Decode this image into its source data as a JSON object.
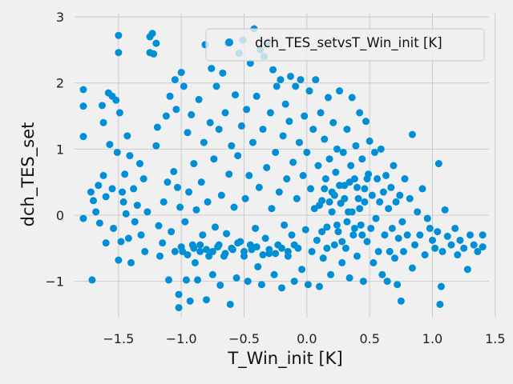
{
  "chart_data": {
    "type": "scatter",
    "xlabel": "T_Win_init [K]",
    "ylabel": "dch_TES_set",
    "xlim": [
      -1.85,
      1.45
    ],
    "ylim": [
      -1.55,
      3.05
    ],
    "xticks": [
      -1.5,
      -1.0,
      -0.5,
      0.0,
      0.5,
      1.0,
      1.5
    ],
    "xtick_labels": [
      "−1.5",
      "−1.0",
      "−0.5",
      "0.0",
      "0.5",
      "1.0",
      "1.5"
    ],
    "yticks": [
      -1,
      0,
      1,
      2,
      3
    ],
    "ytick_labels": [
      "−1",
      "0",
      "1",
      "2",
      "3"
    ],
    "grid": true,
    "legend_position": "top-right",
    "colors": {
      "series": "#008fd5",
      "background": "#f0f0f0",
      "grid": "#cbcbcb"
    },
    "series": [
      {
        "name": "dch_TES_setvsT_Win_init [K]",
        "points": [
          [
            -1.78,
            1.9
          ],
          [
            -1.78,
            1.65
          ],
          [
            -1.78,
            1.19
          ],
          [
            -1.78,
            -0.05
          ],
          [
            -1.71,
            -0.98
          ],
          [
            -1.72,
            0.35
          ],
          [
            -1.7,
            0.22
          ],
          [
            -1.68,
            0.05
          ],
          [
            -1.66,
            0.45
          ],
          [
            -1.65,
            -0.12
          ],
          [
            -1.63,
            1.66
          ],
          [
            -1.62,
            1.4
          ],
          [
            -1.62,
            0.6
          ],
          [
            -1.6,
            0.28
          ],
          [
            -1.6,
            -0.42
          ],
          [
            -1.58,
            1.85
          ],
          [
            -1.57,
            1.07
          ],
          [
            -1.55,
            1.8
          ],
          [
            -1.55,
            0.4
          ],
          [
            -1.54,
            -0.2
          ],
          [
            -1.52,
            1.74
          ],
          [
            -1.51,
            0.95
          ],
          [
            -1.5,
            2.72
          ],
          [
            -1.5,
            2.46
          ],
          [
            -1.5,
            -0.68
          ],
          [
            -1.49,
            1.55
          ],
          [
            -1.48,
            -0.4
          ],
          [
            -1.47,
            0.35
          ],
          [
            -1.46,
            0.2
          ],
          [
            -1.45,
            0.62
          ],
          [
            -1.44,
            0.02
          ],
          [
            -1.43,
            1.2
          ],
          [
            -1.42,
            -0.35
          ],
          [
            -1.41,
            0.9
          ],
          [
            -1.4,
            -0.72
          ],
          [
            -1.38,
            0.4
          ],
          [
            -1.37,
            -0.1
          ],
          [
            -1.35,
            0.15
          ],
          [
            -1.33,
            0.78
          ],
          [
            -1.32,
            -0.3
          ],
          [
            -1.3,
            0.55
          ],
          [
            -1.29,
            -0.55
          ],
          [
            -1.27,
            0.05
          ],
          [
            -1.25,
            2.7
          ],
          [
            -1.25,
            2.46
          ],
          [
            -1.23,
            2.75
          ],
          [
            -1.22,
            2.44
          ],
          [
            -1.2,
            2.6
          ],
          [
            -1.2,
            1.05
          ],
          [
            -1.19,
            1.33
          ],
          [
            -1.18,
            -0.16
          ],
          [
            -1.17,
            -0.62
          ],
          [
            -1.15,
            -0.42
          ],
          [
            -1.14,
            0.2
          ],
          [
            -1.12,
            1.5
          ],
          [
            -1.11,
            0.5
          ],
          [
            -1.1,
            -0.98
          ],
          [
            -1.09,
            1.8
          ],
          [
            -1.08,
            -0.25
          ],
          [
            -1.06,
            0.66
          ],
          [
            -1.05,
            2.05
          ],
          [
            -1.04,
            1.6
          ],
          [
            -1.03,
            0.42
          ],
          [
            -1.02,
            -1.4
          ],
          [
            -1.02,
            -1.2
          ],
          [
            -1.01,
            0.12
          ],
          [
            -1.0,
            2.16
          ],
          [
            -0.99,
            -0.55
          ],
          [
            -0.98,
            1.95
          ],
          [
            -0.97,
            -0.1
          ],
          [
            -0.96,
            -0.98
          ],
          [
            -0.95,
            1.25
          ],
          [
            -0.94,
            0.35
          ],
          [
            -0.93,
            -1.3
          ],
          [
            -0.92,
            1.52
          ],
          [
            -0.91,
            -0.45
          ],
          [
            -0.9,
            0.78
          ],
          [
            -0.89,
            -0.72
          ],
          [
            -0.88,
            0.08
          ],
          [
            -0.87,
            -0.98
          ],
          [
            -0.86,
            1.75
          ],
          [
            -0.85,
            -0.55
          ],
          [
            -0.84,
            0.5
          ],
          [
            -0.83,
            -0.3
          ],
          [
            -0.82,
            1.1
          ],
          [
            -0.81,
            2.58
          ],
          [
            -0.8,
            -1.28
          ],
          [
            -0.79,
            0.2
          ],
          [
            -0.78,
            -0.62
          ],
          [
            -0.77,
            1.4
          ],
          [
            -0.76,
            2.22
          ],
          [
            -0.75,
            -0.9
          ],
          [
            -0.74,
            0.85
          ],
          [
            -0.73,
            -0.18
          ],
          [
            -0.72,
            1.95
          ],
          [
            -0.71,
            -0.48
          ],
          [
            -0.7,
            1.3
          ],
          [
            -0.69,
            -1.06
          ],
          [
            -0.68,
            0.3
          ],
          [
            -0.67,
            2.15
          ],
          [
            -0.66,
            -0.62
          ],
          [
            -0.65,
            1.55
          ],
          [
            -0.64,
            -0.28
          ],
          [
            -0.63,
            2.6
          ],
          [
            -0.62,
            0.62
          ],
          [
            -0.61,
            -1.35
          ],
          [
            -0.6,
            1.05
          ],
          [
            -0.59,
            -0.52
          ],
          [
            -0.58,
            0.12
          ],
          [
            -0.57,
            1.82
          ],
          [
            -0.56,
            -0.95
          ],
          [
            -0.55,
            0.9
          ],
          [
            -0.54,
            2.45
          ],
          [
            -0.53,
            -0.4
          ],
          [
            -0.52,
            1.35
          ],
          [
            -0.51,
            2.65
          ],
          [
            -0.5,
            -0.62
          ],
          [
            -0.49,
            0.25
          ],
          [
            -0.48,
            1.6
          ],
          [
            -0.47,
            -1.0
          ],
          [
            -0.46,
            0.6
          ],
          [
            -0.45,
            2.3
          ],
          [
            -0.44,
            -0.52
          ],
          [
            -0.43,
            1.1
          ],
          [
            -0.42,
            2.82
          ],
          [
            -0.41,
            -0.2
          ],
          [
            -0.4,
            1.8
          ],
          [
            -0.39,
            -0.78
          ],
          [
            -0.38,
            0.42
          ],
          [
            -0.37,
            2.5
          ],
          [
            -0.36,
            -1.05
          ],
          [
            -0.35,
            1.3
          ],
          [
            -0.34,
            2.4
          ],
          [
            -0.33,
            -0.35
          ],
          [
            -0.32,
            0.72
          ],
          [
            -0.31,
            2.62
          ],
          [
            -0.3,
            -0.58
          ],
          [
            -0.29,
            1.55
          ],
          [
            -0.28,
            0.1
          ],
          [
            -0.27,
            2.2
          ],
          [
            -0.26,
            -0.9
          ],
          [
            -0.25,
            0.95
          ],
          [
            -0.24,
            1.95
          ],
          [
            -0.23,
            -0.45
          ],
          [
            -0.22,
            0.35
          ],
          [
            -0.21,
            2.05
          ],
          [
            -0.2,
            -1.1
          ],
          [
            -0.19,
            1.2
          ],
          [
            -0.18,
            -0.15
          ],
          [
            -0.17,
            1.68
          ],
          [
            -0.16,
            0.55
          ],
          [
            -0.15,
            -0.62
          ],
          [
            -0.14,
            1.42
          ],
          [
            -0.13,
            2.1
          ],
          [
            -0.12,
            -0.3
          ],
          [
            -0.11,
            0.8
          ],
          [
            -0.1,
            -1.0
          ],
          [
            -0.09,
            1.95
          ],
          [
            -0.08,
            0.25
          ],
          [
            -0.07,
            -0.5
          ],
          [
            -0.06,
            1.1
          ],
          [
            -0.05,
            2.05
          ],
          [
            -0.04,
            -0.82
          ],
          [
            -0.03,
            0.6
          ],
          [
            -0.02,
            1.5
          ],
          [
            -0.01,
            -0.22
          ],
          [
            0.0,
            0.95
          ],
          [
            0.01,
            -1.05
          ],
          [
            0.02,
            1.88
          ],
          [
            0.03,
            0.4
          ],
          [
            0.04,
            -0.55
          ],
          [
            0.05,
            1.3
          ],
          [
            0.06,
            0.1
          ],
          [
            0.07,
            2.05
          ],
          [
            0.08,
            -0.38
          ],
          [
            0.09,
            0.75
          ],
          [
            0.1,
            -1.08
          ],
          [
            0.11,
            1.55
          ],
          [
            0.12,
            0.22
          ],
          [
            0.13,
            -0.65
          ],
          [
            0.14,
            1.15
          ],
          [
            0.15,
            0.55
          ],
          [
            0.16,
            -0.18
          ],
          [
            0.17,
            1.78
          ],
          [
            0.18,
            0.85
          ],
          [
            0.19,
            -0.9
          ],
          [
            0.2,
            0.35
          ],
          [
            0.21,
            1.4
          ],
          [
            0.22,
            -0.45
          ],
          [
            0.23,
            0.65
          ],
          [
            0.24,
            1.0
          ],
          [
            0.25,
            -0.25
          ],
          [
            0.26,
            1.88
          ],
          [
            0.27,
            0.18
          ],
          [
            0.28,
            -0.72
          ],
          [
            0.29,
            0.95
          ],
          [
            0.3,
            0.45
          ],
          [
            0.31,
            -0.5
          ],
          [
            0.32,
            1.3
          ],
          [
            0.33,
            0.05
          ],
          [
            0.34,
            -0.95
          ],
          [
            0.35,
            0.75
          ],
          [
            0.36,
            1.78
          ],
          [
            0.37,
            -0.3
          ],
          [
            0.38,
            0.55
          ],
          [
            0.39,
            1.05
          ],
          [
            0.4,
            -0.62
          ],
          [
            0.41,
            0.25
          ],
          [
            0.42,
            1.55
          ],
          [
            0.43,
            -0.15
          ],
          [
            0.44,
            0.85
          ],
          [
            0.45,
            -1.0
          ],
          [
            0.46,
            0.4
          ],
          [
            0.47,
            1.42
          ],
          [
            0.48,
            -0.4
          ],
          [
            0.49,
            0.62
          ],
          [
            0.5,
            1.12
          ],
          [
            0.51,
            -0.2
          ],
          [
            0.52,
            0.3
          ],
          [
            0.53,
            -0.72
          ],
          [
            0.54,
            0.95
          ],
          [
            0.55,
            -0.05
          ],
          [
            0.56,
            0.55
          ],
          [
            0.57,
            -0.55
          ],
          [
            0.58,
            0.2
          ],
          [
            0.59,
            1.0
          ],
          [
            0.6,
            -0.9
          ],
          [
            0.61,
            0.35
          ],
          [
            0.62,
            -0.3
          ],
          [
            0.63,
            0.6
          ],
          [
            0.64,
            -1.0
          ],
          [
            0.65,
            0.1
          ],
          [
            0.66,
            -0.55
          ],
          [
            0.67,
            0.42
          ],
          [
            0.68,
            -0.2
          ],
          [
            0.69,
            0.75
          ],
          [
            0.7,
            -0.65
          ],
          [
            0.71,
            0.2
          ],
          [
            0.72,
            -1.05
          ],
          [
            0.73,
            -0.35
          ],
          [
            0.74,
            0.3
          ],
          [
            0.75,
            -1.3
          ],
          [
            0.76,
            -0.1
          ],
          [
            0.77,
            -0.55
          ],
          [
            0.78,
            0.55
          ],
          [
            0.8,
            -0.3
          ],
          [
            0.82,
            0.25
          ],
          [
            0.84,
            1.22
          ],
          [
            0.84,
            -0.8
          ],
          [
            0.86,
            -0.45
          ],
          [
            0.88,
            0.05
          ],
          [
            0.9,
            -0.3
          ],
          [
            0.92,
            0.4
          ],
          [
            0.94,
            -0.6
          ],
          [
            0.96,
            -0.05
          ],
          [
            0.98,
            -0.2
          ],
          [
            1.0,
            -0.38
          ],
          [
            1.02,
            -0.5
          ],
          [
            1.04,
            -0.25
          ],
          [
            1.05,
            0.78
          ],
          [
            1.06,
            -1.35
          ],
          [
            1.07,
            -1.08
          ],
          [
            1.08,
            -0.55
          ],
          [
            1.1,
            0.08
          ],
          [
            1.12,
            -0.32
          ],
          [
            1.15,
            -0.45
          ],
          [
            1.18,
            -0.2
          ],
          [
            1.2,
            -0.6
          ],
          [
            1.22,
            -0.38
          ],
          [
            1.25,
            -0.5
          ],
          [
            1.28,
            -0.82
          ],
          [
            1.3,
            -0.3
          ],
          [
            1.33,
            -0.45
          ],
          [
            1.36,
            -0.55
          ],
          [
            1.4,
            -0.3
          ],
          [
            1.4,
            -0.48
          ],
          [
            0.3,
            0.25
          ],
          [
            0.32,
            -0.1
          ],
          [
            0.34,
            0.5
          ],
          [
            0.36,
            0.05
          ],
          [
            0.38,
            -0.2
          ],
          [
            0.4,
            0.42
          ],
          [
            0.42,
            0.1
          ],
          [
            0.44,
            -0.3
          ],
          [
            0.46,
            0.2
          ],
          [
            0.48,
            0.55
          ],
          [
            0.2,
            0.05
          ],
          [
            0.22,
            0.3
          ],
          [
            0.24,
            -0.15
          ],
          [
            0.26,
            0.45
          ],
          [
            0.28,
            -0.4
          ],
          [
            0.1,
            0.15
          ],
          [
            0.12,
            -0.25
          ],
          [
            0.14,
            0.4
          ],
          [
            0.16,
            -0.5
          ],
          [
            0.18,
            0.2
          ],
          [
            -0.1,
            -0.45
          ],
          [
            -0.2,
            -0.5
          ],
          [
            -0.3,
            -0.52
          ],
          [
            -0.4,
            -0.48
          ],
          [
            -0.5,
            -0.55
          ],
          [
            -0.6,
            -0.5
          ],
          [
            -0.7,
            -0.45
          ],
          [
            -0.8,
            -0.52
          ],
          [
            -0.9,
            -0.5
          ],
          [
            -1.0,
            -0.48
          ],
          [
            -0.15,
            -0.55
          ],
          [
            -0.25,
            -0.58
          ],
          [
            -0.35,
            -0.6
          ],
          [
            -0.45,
            -0.45
          ],
          [
            -0.55,
            -0.42
          ],
          [
            -0.65,
            -0.58
          ],
          [
            -0.75,
            -0.55
          ],
          [
            -0.85,
            -0.45
          ],
          [
            -0.95,
            -0.6
          ],
          [
            -1.05,
            -0.55
          ]
        ]
      }
    ]
  }
}
